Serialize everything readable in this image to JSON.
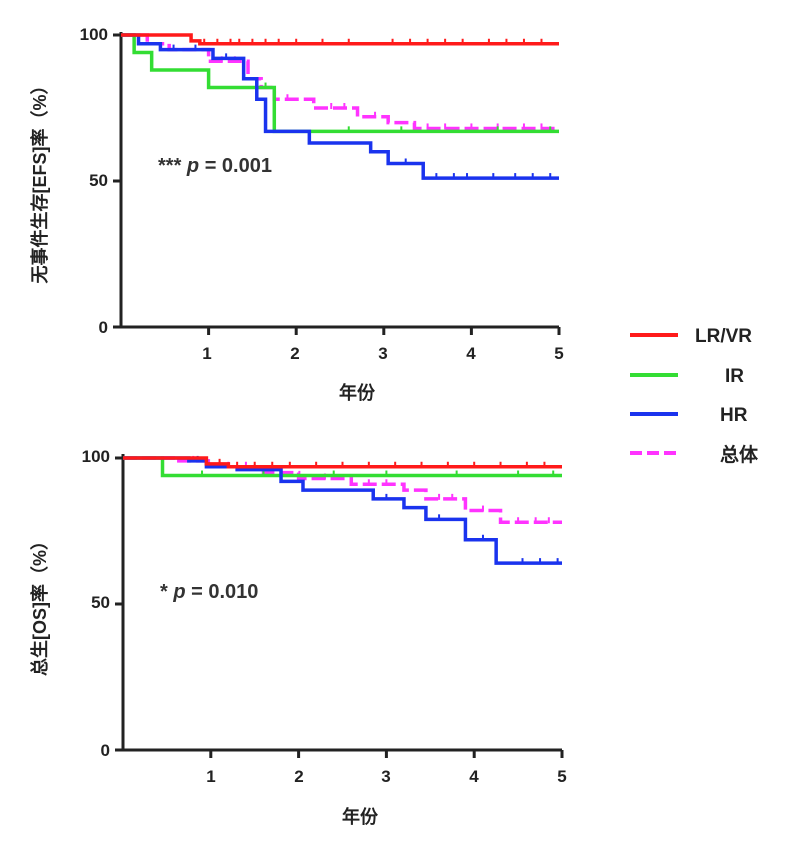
{
  "chart_data": [
    {
      "type": "line",
      "subtype": "kaplan-meier",
      "ylabel": "无事件生存[EFS]率（%）",
      "xlabel": "年份",
      "xlim": [
        0,
        5
      ],
      "ylim": [
        0,
        100
      ],
      "xticks": [
        "1",
        "2",
        "3",
        "4",
        "5"
      ],
      "yticks": [
        "0",
        "50",
        "100"
      ],
      "annotation": {
        "stars": "***",
        "p_label": "p",
        "p_rest": " = 0.001"
      },
      "series": [
        {
          "name": "LR/VR",
          "color": "#ff1a1a",
          "dashed": false,
          "points": [
            [
              0,
              100
            ],
            [
              0.8,
              100
            ],
            [
              0.8,
              98
            ],
            [
              0.9,
              98
            ],
            [
              0.9,
              97
            ],
            [
              5,
              97
            ]
          ],
          "censored": [
            0.95,
            1.1,
            1.25,
            1.35,
            1.5,
            1.65,
            1.8,
            2.0,
            2.3,
            2.6,
            3.1,
            3.3,
            3.5,
            3.7,
            3.9,
            4.2,
            4.4,
            4.6,
            4.8
          ]
        },
        {
          "name": "IR",
          "color": "#33dd33",
          "dashed": false,
          "points": [
            [
              0,
              100
            ],
            [
              0.15,
              100
            ],
            [
              0.15,
              94
            ],
            [
              0.35,
              94
            ],
            [
              0.35,
              88
            ],
            [
              1.0,
              88
            ],
            [
              1.0,
              82
            ],
            [
              1.75,
              82
            ],
            [
              1.75,
              67
            ],
            [
              5,
              67
            ]
          ],
          "censored": [
            1.65,
            2.6,
            3.2,
            4.3,
            4.9
          ]
        },
        {
          "name": "HR",
          "color": "#1a33ee",
          "dashed": false,
          "points": [
            [
              0,
              100
            ],
            [
              0.2,
              100
            ],
            [
              0.2,
              97
            ],
            [
              0.45,
              97
            ],
            [
              0.45,
              95
            ],
            [
              1.05,
              95
            ],
            [
              1.05,
              92
            ],
            [
              1.4,
              92
            ],
            [
              1.4,
              85
            ],
            [
              1.55,
              85
            ],
            [
              1.55,
              78
            ],
            [
              1.65,
              78
            ],
            [
              1.65,
              67
            ],
            [
              2.15,
              67
            ],
            [
              2.15,
              63
            ],
            [
              2.85,
              63
            ],
            [
              2.85,
              60
            ],
            [
              3.05,
              60
            ],
            [
              3.05,
              56
            ],
            [
              3.45,
              56
            ],
            [
              3.45,
              51
            ],
            [
              5,
              51
            ]
          ],
          "censored": [
            0.6,
            0.85,
            1.2,
            3.25,
            3.6,
            3.8,
            3.95,
            4.25,
            4.5,
            4.7,
            4.9
          ]
        },
        {
          "name": "总体",
          "color": "#ff33ff",
          "dashed": true,
          "points": [
            [
              0,
              100
            ],
            [
              0.3,
              100
            ],
            [
              0.3,
              97
            ],
            [
              0.55,
              97
            ],
            [
              0.55,
              95
            ],
            [
              1.0,
              95
            ],
            [
              1.0,
              91
            ],
            [
              1.45,
              91
            ],
            [
              1.45,
              85
            ],
            [
              1.6,
              85
            ],
            [
              1.6,
              82
            ],
            [
              1.75,
              82
            ],
            [
              1.75,
              78
            ],
            [
              2.2,
              78
            ],
            [
              2.2,
              75
            ],
            [
              2.7,
              75
            ],
            [
              2.7,
              72
            ],
            [
              3.05,
              72
            ],
            [
              3.05,
              70
            ],
            [
              3.35,
              70
            ],
            [
              3.35,
              68
            ],
            [
              5,
              68
            ]
          ],
          "censored": [
            1.15,
            1.3,
            1.9,
            2.4,
            2.55,
            2.9,
            3.5,
            3.7,
            4.0,
            4.3,
            4.6,
            4.8
          ]
        }
      ]
    },
    {
      "type": "line",
      "subtype": "kaplan-meier",
      "ylabel": "总生[OS]率（%）",
      "xlabel": "年份",
      "xlim": [
        0,
        5
      ],
      "ylim": [
        0,
        100
      ],
      "xticks": [
        "1",
        "2",
        "3",
        "4",
        "5"
      ],
      "yticks": [
        "0",
        "50",
        "100"
      ],
      "annotation": {
        "stars": "*",
        "p_label": "p",
        "p_rest": " = 0.010"
      },
      "series": [
        {
          "name": "LR/VR",
          "color": "#ff1a1a",
          "dashed": false,
          "points": [
            [
              0,
              100
            ],
            [
              0.95,
              100
            ],
            [
              0.95,
              98
            ],
            [
              1.2,
              98
            ],
            [
              1.2,
              97
            ],
            [
              5,
              97
            ]
          ],
          "censored": [
            1.1,
            1.3,
            1.5,
            1.7,
            1.9,
            2.2,
            2.5,
            2.8,
            3.1,
            3.4,
            3.7,
            4.0,
            4.3,
            4.6,
            4.8
          ]
        },
        {
          "name": "IR",
          "color": "#33dd33",
          "dashed": false,
          "points": [
            [
              0,
              100
            ],
            [
              0.45,
              100
            ],
            [
              0.45,
              94
            ],
            [
              5,
              94
            ]
          ],
          "censored": [
            0.9,
            1.6,
            2.4,
            3.0,
            3.8,
            4.5,
            4.9
          ]
        },
        {
          "name": "HR",
          "color": "#1a33ee",
          "dashed": false,
          "points": [
            [
              0,
              100
            ],
            [
              0.75,
              100
            ],
            [
              0.75,
              99
            ],
            [
              0.95,
              99
            ],
            [
              0.95,
              97
            ],
            [
              1.3,
              97
            ],
            [
              1.3,
              96
            ],
            [
              1.8,
              96
            ],
            [
              1.8,
              92
            ],
            [
              2.05,
              92
            ],
            [
              2.05,
              89
            ],
            [
              2.85,
              89
            ],
            [
              2.85,
              86
            ],
            [
              3.2,
              86
            ],
            [
              3.2,
              83
            ],
            [
              3.45,
              83
            ],
            [
              3.45,
              79
            ],
            [
              3.9,
              79
            ],
            [
              3.9,
              72
            ],
            [
              4.25,
              72
            ],
            [
              4.25,
              64
            ],
            [
              5,
              64
            ]
          ],
          "censored": [
            0.85,
            1.1,
            1.5,
            3.0,
            3.6,
            4.1,
            4.55,
            4.75,
            4.95
          ]
        },
        {
          "name": "总体",
          "color": "#ff33ff",
          "dashed": true,
          "points": [
            [
              0,
              100
            ],
            [
              0.6,
              100
            ],
            [
              0.6,
              99
            ],
            [
              1.0,
              99
            ],
            [
              1.0,
              97
            ],
            [
              1.6,
              97
            ],
            [
              1.6,
              95
            ],
            [
              2.0,
              95
            ],
            [
              2.0,
              93
            ],
            [
              2.6,
              93
            ],
            [
              2.6,
              91
            ],
            [
              3.2,
              91
            ],
            [
              3.2,
              89
            ],
            [
              3.45,
              89
            ],
            [
              3.45,
              86
            ],
            [
              3.9,
              86
            ],
            [
              3.9,
              82
            ],
            [
              4.3,
              82
            ],
            [
              4.3,
              78
            ],
            [
              5,
              78
            ]
          ],
          "censored": [
            0.8,
            1.2,
            1.4,
            2.3,
            2.8,
            3.0,
            3.6,
            3.75,
            4.1,
            4.5,
            4.7,
            4.85
          ]
        }
      ]
    }
  ],
  "legend": [
    {
      "name": "LR/VR",
      "color": "#ff1a1a",
      "dashed": false
    },
    {
      "name": "IR",
      "color": "#33dd33",
      "dashed": false
    },
    {
      "name": "HR",
      "color": "#1a33ee",
      "dashed": false
    },
    {
      "name": "总体",
      "color": "#ff33ff",
      "dashed": true
    }
  ]
}
